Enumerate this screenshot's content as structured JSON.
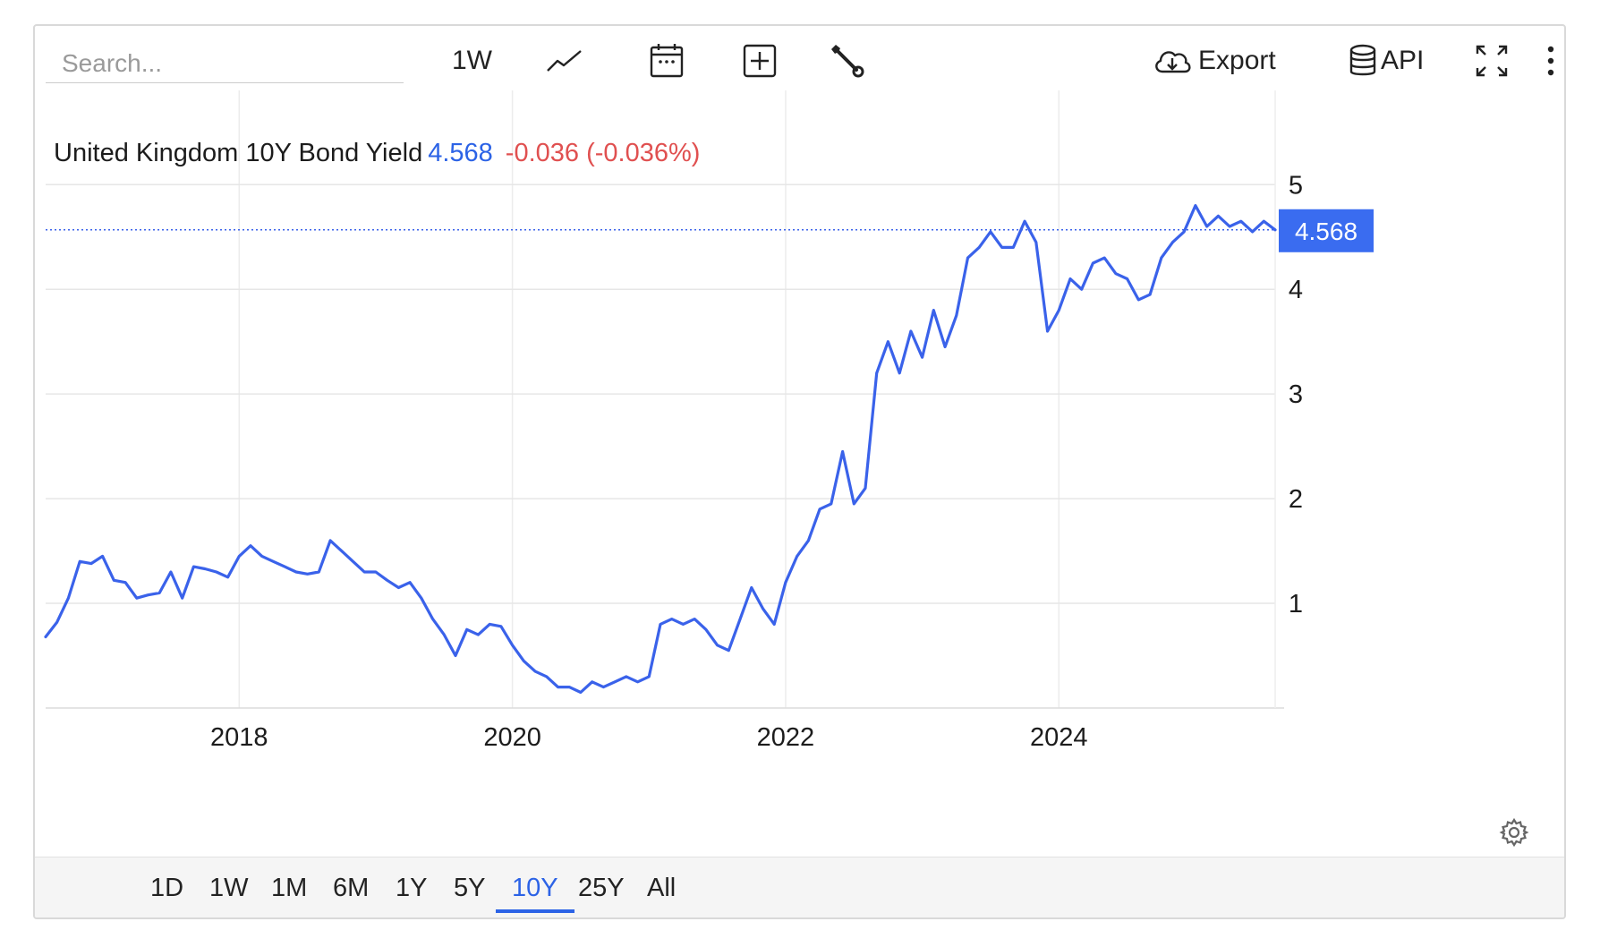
{
  "toolbar": {
    "search_placeholder": "Search...",
    "interval_label": "1W",
    "line_type_icon": "line-chart-icon",
    "calendar_icon": "calendar-icon",
    "compare_icon": "plus-box-icon",
    "tools_icon": "wrench-icon",
    "export_label": "Export",
    "api_label": "API",
    "fullscreen_icon": "fullscreen-icon",
    "more_icon": "more-vertical-icon"
  },
  "legend": {
    "name": "United Kingdom 10Y Bond Yield",
    "value": "4.568",
    "change": "-0.036 (-0.036%)"
  },
  "price_tag": "4.568",
  "ranges": [
    "1D",
    "1W",
    "1M",
    "6M",
    "1Y",
    "5Y",
    "10Y",
    "25Y",
    "All"
  ],
  "active_range": "10Y",
  "colors": {
    "line": "#3a62ea",
    "value_text": "#2c63e6",
    "change_text": "#e05050",
    "price_tag_bg": "#3a6cf0"
  },
  "chart_data": {
    "type": "line",
    "title": "United Kingdom 10Y Bond Yield",
    "xlabel": "",
    "ylabel": "",
    "x_ticks": [
      "2018",
      "2020",
      "2022",
      "2024"
    ],
    "y_ticks": [
      1,
      2,
      3,
      4,
      5
    ],
    "xlim": [
      "2016-08",
      "2025-08"
    ],
    "ylim": [
      0,
      5.9
    ],
    "current_value": 4.568,
    "grid": true,
    "series": [
      {
        "x": [
          "2016-08",
          "2016-09",
          "2016-10",
          "2016-11",
          "2016-12",
          "2017-01",
          "2017-02",
          "2017-03",
          "2017-04",
          "2017-05",
          "2017-06",
          "2017-07",
          "2017-08",
          "2017-09",
          "2017-10",
          "2017-11",
          "2017-12",
          "2018-01",
          "2018-02",
          "2018-03",
          "2018-04",
          "2018-05",
          "2018-06",
          "2018-07",
          "2018-08",
          "2018-09",
          "2018-10",
          "2018-11",
          "2018-12",
          "2019-01",
          "2019-02",
          "2019-03",
          "2019-04",
          "2019-05",
          "2019-06",
          "2019-07",
          "2019-08",
          "2019-09",
          "2019-10",
          "2019-11",
          "2019-12",
          "2020-01",
          "2020-02",
          "2020-03",
          "2020-04",
          "2020-05",
          "2020-06",
          "2020-07",
          "2020-08",
          "2020-09",
          "2020-10",
          "2020-11",
          "2020-12",
          "2021-01",
          "2021-02",
          "2021-03",
          "2021-04",
          "2021-05",
          "2021-06",
          "2021-07",
          "2021-08",
          "2021-09",
          "2021-10",
          "2021-11",
          "2021-12",
          "2022-01",
          "2022-02",
          "2022-03",
          "2022-04",
          "2022-05",
          "2022-06",
          "2022-07",
          "2022-08",
          "2022-09",
          "2022-10",
          "2022-11",
          "2022-12",
          "2023-01",
          "2023-02",
          "2023-03",
          "2023-04",
          "2023-05",
          "2023-06",
          "2023-07",
          "2023-08",
          "2023-09",
          "2023-10",
          "2023-11",
          "2023-12",
          "2024-01",
          "2024-02",
          "2024-03",
          "2024-04",
          "2024-05",
          "2024-06",
          "2024-07",
          "2024-08",
          "2024-09",
          "2024-10",
          "2024-11",
          "2024-12",
          "2025-01",
          "2025-02",
          "2025-03",
          "2025-04",
          "2025-05",
          "2025-06",
          "2025-07",
          "2025-08"
        ],
        "values": [
          0.68,
          0.82,
          1.05,
          1.4,
          1.38,
          1.45,
          1.22,
          1.2,
          1.05,
          1.08,
          1.1,
          1.3,
          1.05,
          1.35,
          1.33,
          1.3,
          1.25,
          1.45,
          1.55,
          1.45,
          1.4,
          1.35,
          1.3,
          1.28,
          1.3,
          1.6,
          1.5,
          1.4,
          1.3,
          1.3,
          1.22,
          1.15,
          1.2,
          1.05,
          0.85,
          0.7,
          0.5,
          0.75,
          0.7,
          0.8,
          0.78,
          0.6,
          0.45,
          0.35,
          0.3,
          0.2,
          0.2,
          0.15,
          0.25,
          0.2,
          0.25,
          0.3,
          0.25,
          0.3,
          0.8,
          0.85,
          0.8,
          0.85,
          0.75,
          0.6,
          0.55,
          0.85,
          1.15,
          0.95,
          0.8,
          1.2,
          1.45,
          1.6,
          1.9,
          1.95,
          2.45,
          1.95,
          2.1,
          3.2,
          3.5,
          3.2,
          3.6,
          3.35,
          3.8,
          3.45,
          3.75,
          4.3,
          4.4,
          4.55,
          4.4,
          4.4,
          4.65,
          4.45,
          3.6,
          3.8,
          4.1,
          4.0,
          4.25,
          4.3,
          4.15,
          4.1,
          3.9,
          3.95,
          4.3,
          4.45,
          4.55,
          4.8,
          4.6,
          4.7,
          4.6,
          4.65,
          4.55,
          4.65,
          4.568
        ]
      }
    ]
  }
}
